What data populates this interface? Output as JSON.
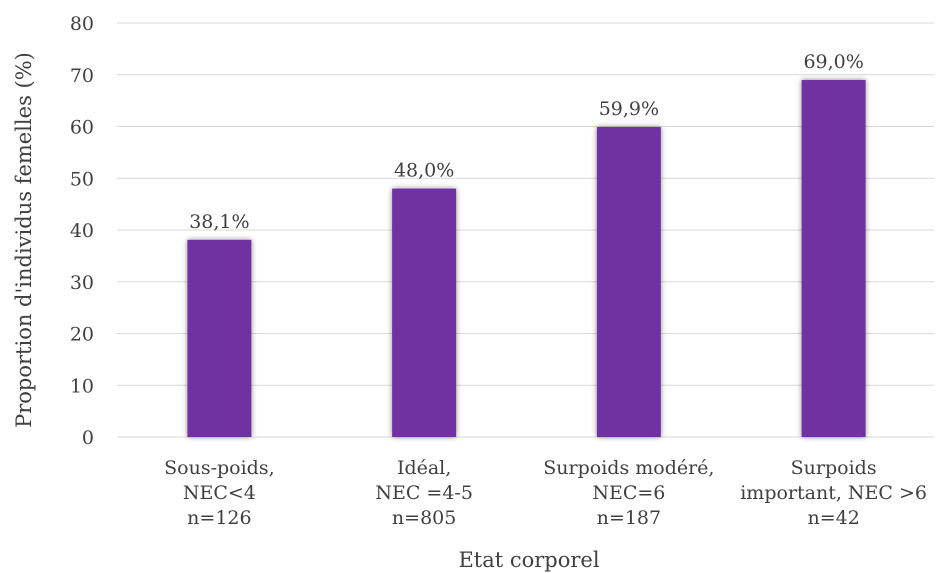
{
  "chart_data": {
    "type": "bar",
    "categories": [
      [
        "Sous-poids,",
        "NEC<4",
        "n=126"
      ],
      [
        "Idéal,",
        "NEC =4-5",
        "n=805"
      ],
      [
        "Surpoids modéré,",
        "NEC=6",
        "n=187"
      ],
      [
        "Surpoids",
        "important, NEC >6",
        "n=42"
      ]
    ],
    "values": [
      38.1,
      48.0,
      59.9,
      69.0
    ],
    "data_labels": [
      "38,1%",
      "48,0%",
      "59,9%",
      "69,0%"
    ],
    "xlabel": "Etat corporel",
    "ylabel": "Proportion d'individus femelles (%)",
    "ylim": [
      0,
      80
    ],
    "yticks": [
      0,
      10,
      20,
      30,
      40,
      50,
      60,
      70,
      80
    ],
    "grid": true,
    "legend": "none",
    "bar_color": "#7030a0",
    "grid_color": "#d9d9d9",
    "text_color": "#404040"
  }
}
